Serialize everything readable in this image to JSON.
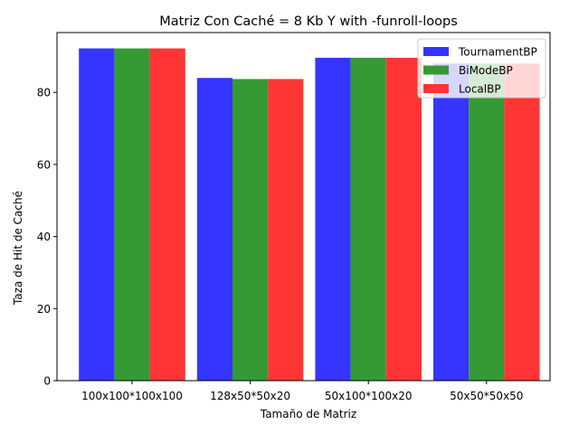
{
  "chart_data": {
    "type": "bar",
    "title": "Matriz Con Caché = 8 Kb Y  with -funroll-loops",
    "xlabel": "Tamaño de Matriz",
    "ylabel": "Taza de Hit de Caché",
    "categories": [
      "100x100*100x100",
      "128x50*50x20",
      "50x100*100x20",
      "50x50*50x50"
    ],
    "ylim": [
      0,
      96.6
    ],
    "yticks": [
      0,
      20,
      40,
      60,
      80
    ],
    "grid": false,
    "legend_position": "top-right",
    "series": [
      {
        "name": "TournamentBP",
        "color": "#3333ff",
        "values": [
          92.2,
          84.0,
          89.6,
          88.0
        ]
      },
      {
        "name": "BiModeBP",
        "color": "#339933",
        "values": [
          92.2,
          83.7,
          89.6,
          88.0
        ]
      },
      {
        "name": "LocalBP",
        "color": "#ff3333",
        "values": [
          92.2,
          83.7,
          89.6,
          88.0
        ]
      }
    ]
  }
}
